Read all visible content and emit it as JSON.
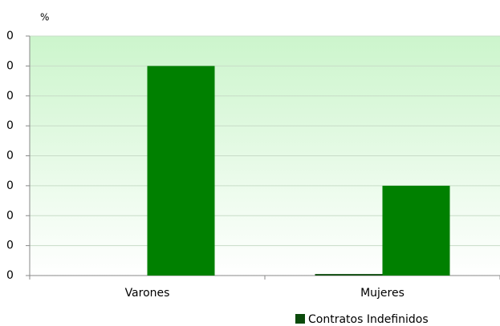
{
  "chart_data": {
    "type": "bar",
    "y_label": "%",
    "categories": [
      "Varones",
      "Mujeres"
    ],
    "series": [
      {
        "name": "Contratos Indefinidos",
        "color": "#0b4a0b",
        "values": [
          0,
          0.05
        ]
      },
      {
        "color": "#008000",
        "values": [
          7,
          3
        ]
      }
    ],
    "ylim": [
      0,
      8
    ],
    "yticks": [
      0,
      {
        "value": 1,
        "label": "0"
      },
      {
        "value": 2,
        "label": "0"
      },
      {
        "value": 3,
        "label": "0"
      },
      {
        "value": 4,
        "label": "0"
      },
      {
        "value": 5,
        "label": "0"
      },
      {
        "value": 6,
        "label": "0"
      },
      {
        "value": 7,
        "label": "0"
      },
      {
        "value": 8,
        "label": "0"
      }
    ],
    "grid": true,
    "legend": "bottom-right"
  }
}
